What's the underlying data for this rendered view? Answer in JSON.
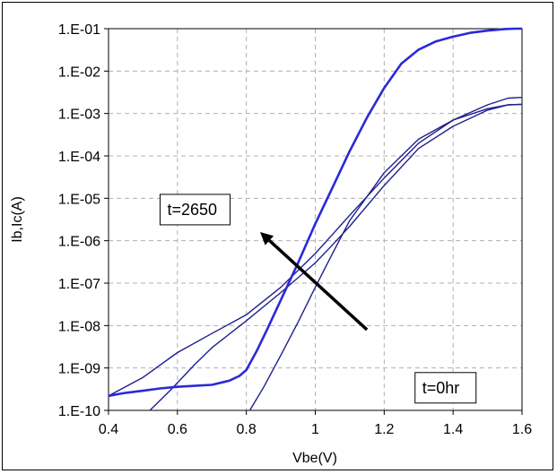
{
  "chart_data": {
    "type": "line",
    "title": "",
    "xlabel": "Vbe(V)",
    "ylabel": "Ib,Ic(A)",
    "xlim": [
      0.4,
      1.6
    ],
    "ylim_log10": [
      -10,
      -1
    ],
    "y_scale": "log",
    "grid": true,
    "x_ticks": [
      {
        "value": 0.4,
        "label": "0.4"
      },
      {
        "value": 0.6,
        "label": "0.6"
      },
      {
        "value": 0.8,
        "label": "0.8"
      },
      {
        "value": 1.0,
        "label": "1"
      },
      {
        "value": 1.2,
        "label": "1.2"
      },
      {
        "value": 1.4,
        "label": "1.4"
      },
      {
        "value": 1.6,
        "label": "1.6"
      }
    ],
    "y_ticks": [
      {
        "value": 1e-10,
        "label": "1.E-10"
      },
      {
        "value": 1e-09,
        "label": "1.E-09"
      },
      {
        "value": 1e-08,
        "label": "1.E-08"
      },
      {
        "value": 1e-07,
        "label": "1.E-07"
      },
      {
        "value": 1e-06,
        "label": "1.E-06"
      },
      {
        "value": 1e-05,
        "label": "1.E-05"
      },
      {
        "value": 0.0001,
        "label": "1.E-04"
      },
      {
        "value": 0.001,
        "label": "1.E-03"
      },
      {
        "value": 0.01,
        "label": "1.E-02"
      },
      {
        "value": 0.1,
        "label": "1.E-01"
      }
    ],
    "series": [
      {
        "color": "#1f1f8f",
        "width": 1.4,
        "x": [
          0.4,
          0.5,
          0.6,
          0.7,
          0.8,
          0.9,
          1.0,
          1.05,
          1.1,
          1.2,
          1.3,
          1.4,
          1.5,
          1.56,
          1.6
        ],
        "y": [
          2.2e-10,
          6e-10,
          2.3e-09,
          6.5e-09,
          1.8e-08,
          8e-08,
          5e-07,
          1.4e-06,
          4e-06,
          3e-05,
          0.0002,
          0.0007,
          0.0016,
          0.0023,
          0.0024
        ]
      },
      {
        "color": "#1f1f8f",
        "width": 1.4,
        "x": [
          0.52,
          0.58,
          0.65,
          0.7,
          0.8,
          0.9,
          1.0,
          1.05,
          1.1,
          1.2,
          1.3,
          1.4,
          1.5,
          1.56,
          1.6
        ],
        "y": [
          1e-10,
          3e-10,
          1.2e-09,
          3e-09,
          1.3e-08,
          6e-08,
          3e-07,
          8e-07,
          2.2e-06,
          2e-05,
          0.00015,
          0.0005,
          0.0012,
          0.0016,
          0.00165
        ]
      },
      {
        "color": "#1f1f8f",
        "width": 1.4,
        "x": [
          0.81,
          0.85,
          0.9,
          0.95,
          1.0,
          1.05,
          1.1,
          1.2,
          1.3,
          1.4,
          1.5,
          1.56,
          1.6
        ],
        "y": [
          1e-10,
          3.5e-10,
          2e-09,
          1.2e-08,
          8e-08,
          5e-07,
          3e-06,
          4e-05,
          0.00025,
          0.0007,
          0.0013,
          0.0016,
          0.00165
        ]
      },
      {
        "color": "#2a2ad6",
        "width": 2.6,
        "x": [
          0.4,
          0.45,
          0.5,
          0.55,
          0.6,
          0.65,
          0.7,
          0.75,
          0.78,
          0.8,
          0.83,
          0.86,
          0.9,
          0.95,
          1.0,
          1.05,
          1.1,
          1.15,
          1.2,
          1.25,
          1.3,
          1.35,
          1.4,
          1.45,
          1.5,
          1.55,
          1.58,
          1.6
        ],
        "y": [
          2.2e-10,
          2.6e-10,
          2.9e-10,
          3.3e-10,
          3.6e-10,
          3.8e-10,
          4e-10,
          5e-10,
          6.5e-10,
          9e-10,
          2.5e-09,
          8e-09,
          4e-08,
          3e-07,
          2.5e-06,
          1.8e-05,
          0.00013,
          0.0008,
          0.004,
          0.015,
          0.032,
          0.05,
          0.065,
          0.08,
          0.09,
          0.098,
          0.1,
          0.1
        ]
      }
    ],
    "annotations": [
      {
        "text": "t=2650",
        "x": 0.56,
        "y": 3.5e-06
      },
      {
        "text": "t=0hr",
        "x": 1.3,
        "y": 2.2e-10
      }
    ],
    "arrow": {
      "from_x": 1.15,
      "from_y": 8e-09,
      "to_x": 0.84,
      "to_y": 1.6e-06,
      "color": "#000000"
    }
  }
}
